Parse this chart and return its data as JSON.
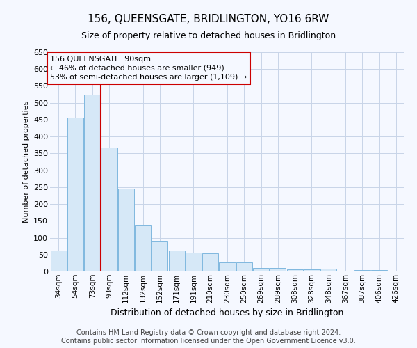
{
  "title": "156, QUEENSGATE, BRIDLINGTON, YO16 6RW",
  "subtitle": "Size of property relative to detached houses in Bridlington",
  "xlabel": "Distribution of detached houses by size in Bridlington",
  "ylabel": "Number of detached properties",
  "footer_line1": "Contains HM Land Registry data © Crown copyright and database right 2024.",
  "footer_line2": "Contains public sector information licensed under the Open Government Licence v3.0.",
  "annotation_line1": "156 QUEENSGATE: 90sqm",
  "annotation_line2": "← 46% of detached houses are smaller (949)",
  "annotation_line3": "53% of semi-detached houses are larger (1,109) →",
  "bar_color": "#d6e8f7",
  "bar_edge_color": "#7fb8df",
  "redline_color": "#cc0000",
  "grid_color": "#c8d4e8",
  "background_color": "#f5f8ff",
  "categories": [
    "34sqm",
    "54sqm",
    "73sqm",
    "93sqm",
    "112sqm",
    "132sqm",
    "152sqm",
    "171sqm",
    "191sqm",
    "210sqm",
    "230sqm",
    "250sqm",
    "269sqm",
    "289sqm",
    "308sqm",
    "328sqm",
    "348sqm",
    "367sqm",
    "387sqm",
    "406sqm",
    "426sqm"
  ],
  "values": [
    62,
    457,
    524,
    367,
    245,
    138,
    91,
    61,
    55,
    53,
    26,
    26,
    11,
    11,
    6,
    7,
    9,
    3,
    4,
    5,
    3
  ],
  "ylim": [
    0,
    650
  ],
  "yticks": [
    0,
    50,
    100,
    150,
    200,
    250,
    300,
    350,
    400,
    450,
    500,
    550,
    600,
    650
  ],
  "redline_bar_index": 3,
  "figsize": [
    6.0,
    5.0
  ],
  "dpi": 100,
  "title_fontsize": 11,
  "subtitle_fontsize": 9,
  "ylabel_fontsize": 8,
  "xlabel_fontsize": 9,
  "tick_fontsize": 7.5,
  "ytick_fontsize": 8,
  "annotation_fontsize": 8,
  "footer_fontsize": 7
}
